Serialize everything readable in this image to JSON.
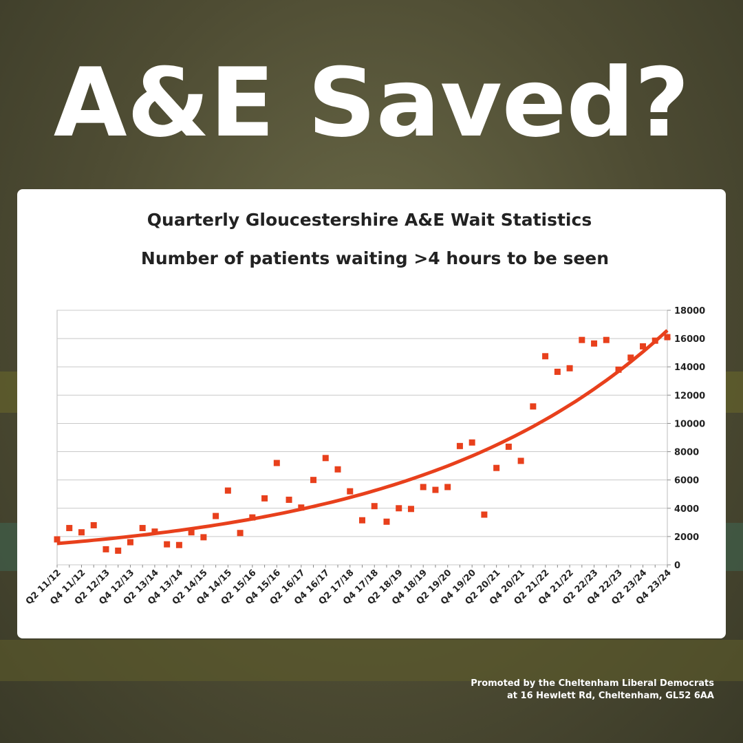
{
  "headline": "A&E Saved?",
  "footer": [
    "Promoted by the Cheltenham Liberal Democrats",
    "at 16 Hewlett Rd, Cheltenham, GL52 6AA"
  ],
  "chart_data": {
    "type": "scatter",
    "title": "Quarterly Gloucestershire A&E Wait Statistics",
    "subtitle": "Number of patients waiting >4 hours to be seen",
    "categories": [
      "Q2 11/12",
      null,
      "Q4 11/12",
      null,
      "Q2 12/13",
      null,
      "Q4 12/13",
      null,
      "Q2 13/14",
      null,
      "Q4 13/14",
      null,
      "Q2 14/15",
      null,
      "Q4 14/15",
      null,
      "Q2 15/16",
      null,
      "Q4 15/16",
      null,
      "Q2 16/17",
      null,
      "Q4 16/17",
      null,
      "Q2 17/18",
      null,
      "Q4 17/18",
      null,
      "Q2 18/19",
      null,
      "Q4 18/19",
      null,
      "Q2 19/20",
      null,
      "Q4 19/20",
      null,
      "Q2 20/21",
      null,
      "Q4 20/21",
      null,
      "Q2 21/22",
      null,
      "Q4 21/22",
      null,
      "Q2 22/23",
      null,
      "Q4 22/23",
      null,
      "Q2 23/24",
      null,
      "Q4 23/24"
    ],
    "values": [
      1800,
      2600,
      2300,
      2800,
      1100,
      1000,
      1600,
      2600,
      2350,
      1450,
      1400,
      2300,
      1950,
      3450,
      5250,
      2250,
      3350,
      4700,
      7200,
      4600,
      4050,
      6000,
      7550,
      6750,
      5200,
      3150,
      4150,
      3050,
      4000,
      3950,
      5500,
      5300,
      5500,
      8400,
      8650,
      3550,
      6850,
      8350,
      7350,
      11200,
      14750,
      13650,
      13900,
      15900,
      15650,
      15900,
      13800,
      14650,
      15450,
      15850,
      16100
    ],
    "color": "#e8401c",
    "trendline": "exponential",
    "ylim": [
      0,
      18000
    ],
    "yticks": [
      0,
      2000,
      4000,
      6000,
      8000,
      10000,
      12000,
      14000,
      16000,
      18000
    ],
    "grid": true,
    "y_axis_side": "right"
  }
}
